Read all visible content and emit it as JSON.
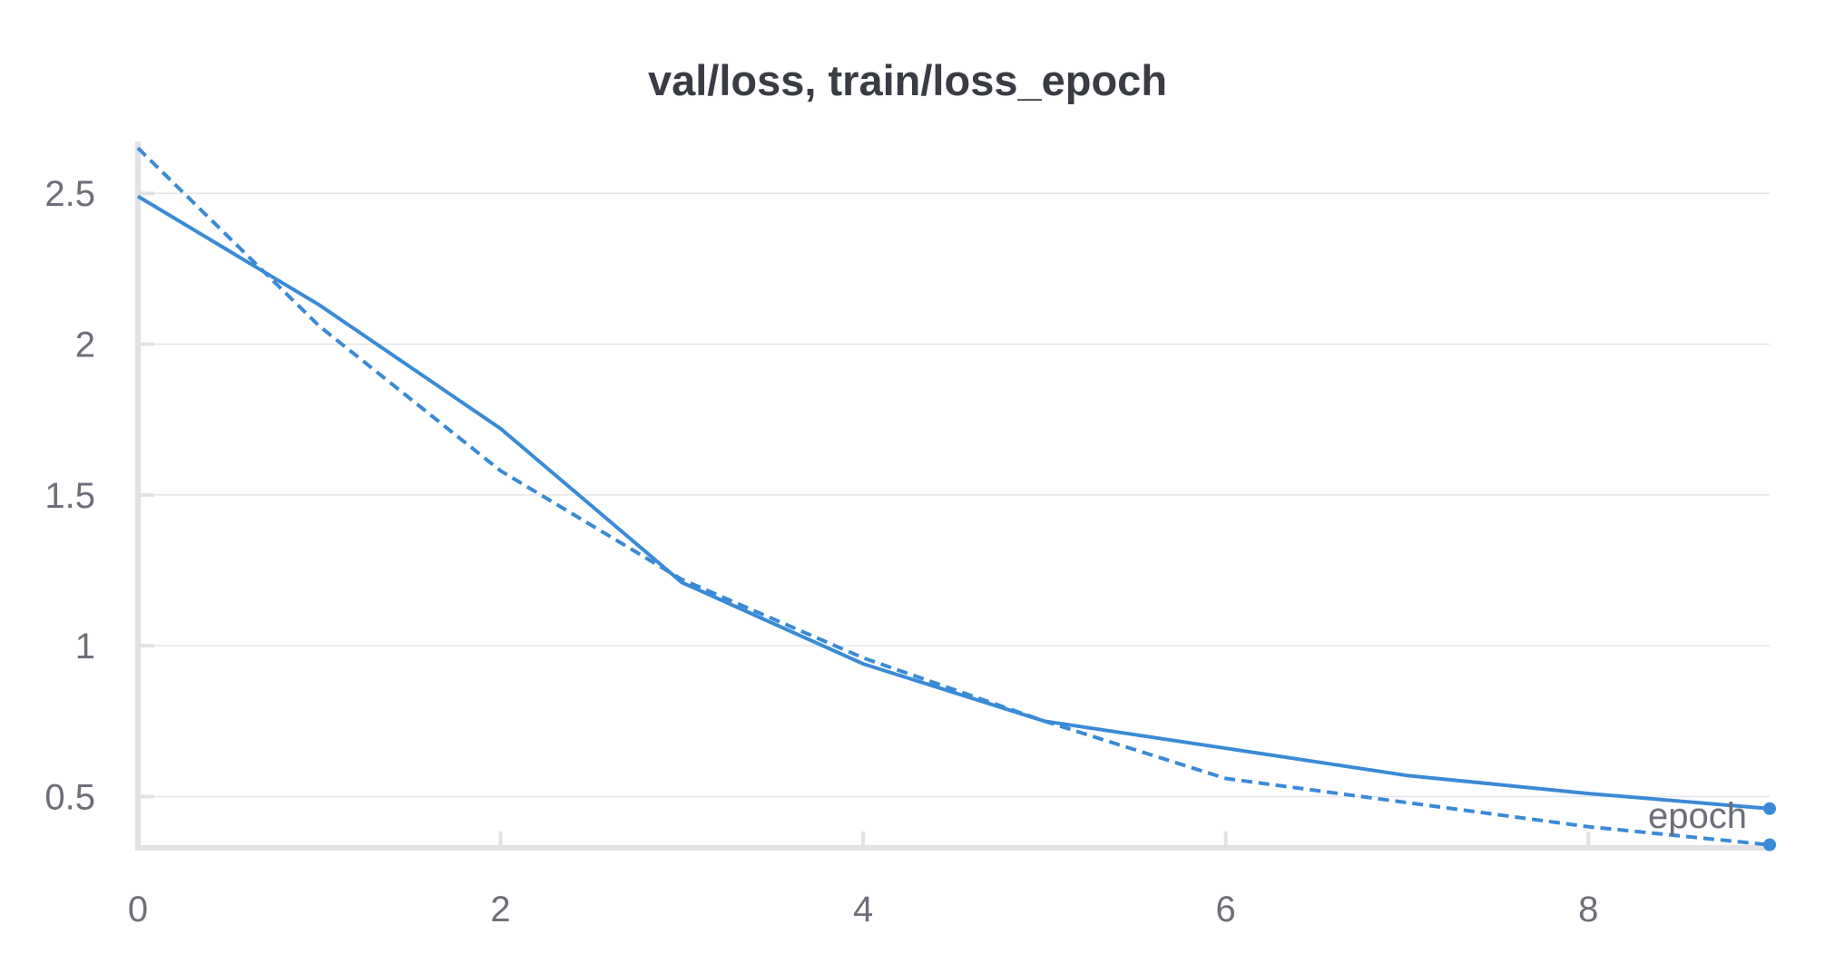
{
  "chart_data": {
    "type": "line",
    "title": "val/loss, train/loss_epoch",
    "xlabel": "epoch",
    "ylabel": "",
    "xlim": [
      0,
      9
    ],
    "ylim": [
      0.33,
      2.66
    ],
    "x_ticks": [
      0,
      2,
      4,
      6,
      8
    ],
    "y_ticks": [
      0.5,
      1,
      1.5,
      2,
      2.5
    ],
    "grid": true,
    "colors": {
      "series": "#3a8ad6",
      "grid": "#e6e6e9",
      "axis": "#e2e2e5",
      "text": "#6c6e78",
      "title": "#3a3c44"
    },
    "series": [
      {
        "style": "solid",
        "x": [
          0,
          1,
          2,
          3,
          4,
          5,
          6,
          7,
          8,
          9
        ],
        "values": [
          2.49,
          2.13,
          1.72,
          1.21,
          0.94,
          0.75,
          0.66,
          0.57,
          0.51,
          0.46
        ]
      },
      {
        "style": "dashed",
        "x": [
          0,
          1,
          2,
          3,
          4,
          5,
          6,
          7,
          8,
          9
        ],
        "values": [
          2.65,
          2.06,
          1.58,
          1.22,
          0.96,
          0.75,
          0.56,
          0.48,
          0.4,
          0.34
        ]
      }
    ]
  }
}
